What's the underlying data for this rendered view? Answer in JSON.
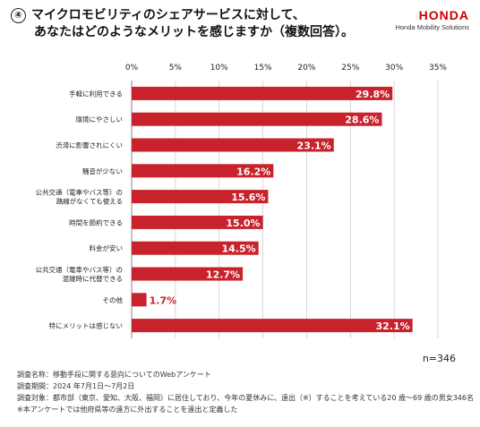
{
  "header": {
    "number": "④",
    "title_line1": "マイクロモビリティのシェアサービスに対して、",
    "title_line2": "あなたはどのようなメリットを感じますか（複数回答）。"
  },
  "logo": {
    "brand": "HONDA",
    "sub": "Honda Mobility Solutions"
  },
  "colors": {
    "bar": "#c8232c",
    "grid": "#cccccc",
    "text": "#222222"
  },
  "chart_data": {
    "type": "bar",
    "orientation": "horizontal",
    "categories": [
      [
        "手軽に利用できる"
      ],
      [
        "環境にやさしい"
      ],
      [
        "渋滞に影響されにくい"
      ],
      [
        "騒音が少ない"
      ],
      [
        "公共交通（電車やバス等）の",
        "路線がなくても使える"
      ],
      [
        "時間を節約できる"
      ],
      [
        "料金が安い"
      ],
      [
        "公共交通（電車やバス等）の",
        "混雑時に代替できる"
      ],
      [
        "その他"
      ],
      [
        "特にメリットは感じない"
      ]
    ],
    "values": [
      29.8,
      28.6,
      23.1,
      16.2,
      15.6,
      15.0,
      14.5,
      12.7,
      1.7,
      32.1
    ],
    "value_labels": [
      "29.8%",
      "28.6%",
      "23.1%",
      "16.2%",
      "15.6%",
      "15.0%",
      "14.5%",
      "12.7%",
      "1.7%",
      "32.1%"
    ],
    "xlim": [
      0,
      35
    ],
    "ticks": [
      0,
      5,
      10,
      15,
      20,
      25,
      30,
      35
    ],
    "tick_labels": [
      "0%",
      "5%",
      "10%",
      "15%",
      "20%",
      "25%",
      "30%",
      "35%"
    ],
    "n_label": "n=346",
    "grid": true
  },
  "footer": {
    "line1": "調査名称：移動手段に関する意向についてのWebアンケート",
    "line2": "調査期間：2024 年7月1日～7月2日",
    "line3": "調査対象：都市部（東京、愛知、大阪、福岡）に居住しており、今年の夏休みに、遠出（※）することを考えている20 歳～69 歳の男女346名",
    "line4": "※本アンケートでは他府県等の遠方に外出することを遠出と定義した"
  }
}
